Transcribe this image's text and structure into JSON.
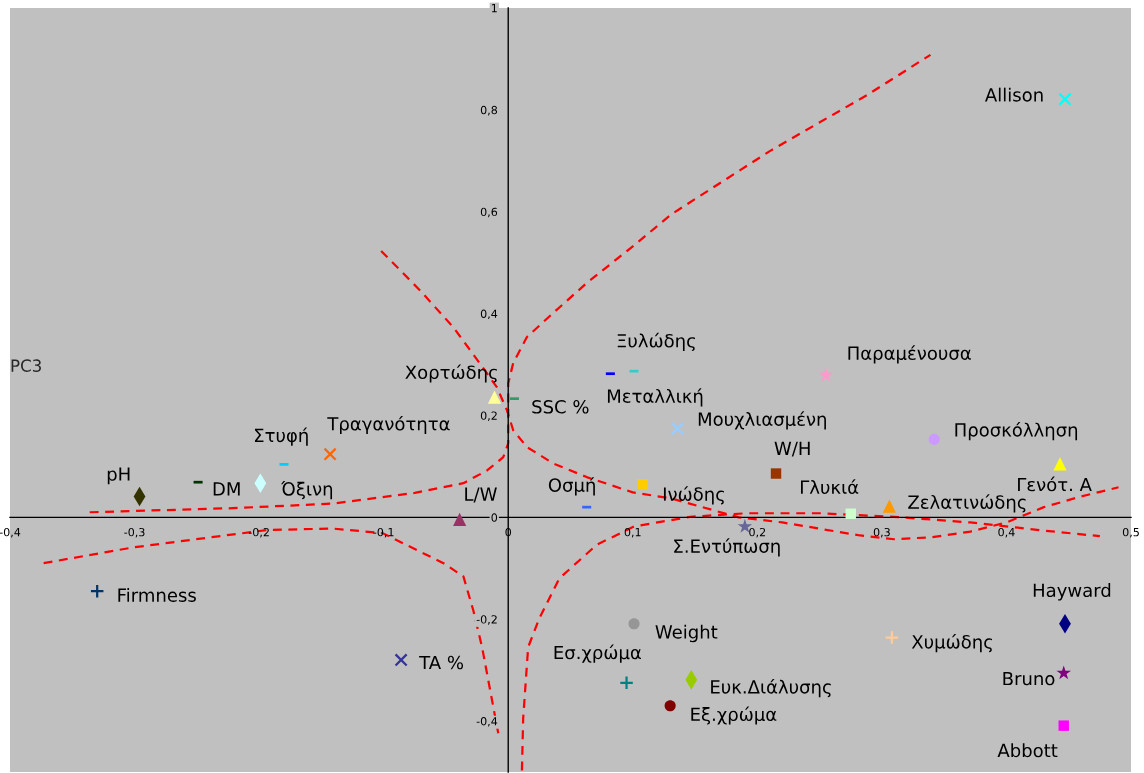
{
  "chart_data": {
    "type": "scatter",
    "ylabel": "PC3",
    "xlim": [
      -0.4,
      0.5
    ],
    "ylim": [
      -0.5,
      1
    ],
    "xticks": [
      {
        "value": -0.4,
        "label": "-0,4"
      },
      {
        "value": -0.3,
        "label": "-0,3"
      },
      {
        "value": -0.2,
        "label": "-0,2"
      },
      {
        "value": -0.1,
        "label": "-0,1"
      },
      0,
      {
        "value": 0.1,
        "label": "0,1"
      },
      {
        "value": 0.2,
        "label": "0,2"
      },
      {
        "value": 0.3,
        "label": "0,3"
      },
      {
        "value": 0.4,
        "label": "0,4"
      },
      {
        "value": 0.5,
        "label": "0,5"
      }
    ],
    "yticks": [
      {
        "value": -0.4,
        "label": "-0,4"
      },
      {
        "value": -0.2,
        "label": "-0,2"
      },
      0,
      {
        "value": 0.2,
        "label": "0,2"
      },
      {
        "value": 0.4,
        "label": "0,4"
      },
      {
        "value": 0.6,
        "label": "0,6"
      },
      {
        "value": 0.8,
        "label": "0,8"
      },
      1
    ],
    "series": [
      {
        "name": "pH",
        "color": "#333300",
        "marker": "diamond",
        "x": [
          -0.296
        ],
        "values": [
          0.041
        ]
      },
      {
        "name": "DM",
        "color": "#003300",
        "x": [
          -0.249
        ],
        "values": [
          0.069
        ]
      },
      {
        "name": "Όξινη",
        "color": "#ccffff",
        "marker": "diamond",
        "x": [
          -0.199
        ],
        "values": [
          0.067
        ]
      },
      {
        "name": "Στυφή",
        "color": "#00ccff",
        "x": [
          -0.18
        ],
        "values": [
          0.104
        ]
      },
      {
        "name": "Τραγανότητα",
        "color": "#ff6600",
        "marker": "cross",
        "x": [
          -0.143
        ],
        "values": [
          0.124
        ]
      },
      {
        "name": "Χορτώδης",
        "color": "#ffff99",
        "marker": "triangle",
        "x": [
          -0.011
        ],
        "values": [
          0.236
        ]
      },
      {
        "name": "SSC %",
        "color": "#339966",
        "x": [
          0.005
        ],
        "values": [
          0.233
        ]
      },
      {
        "name": "L/W",
        "color": "#993366",
        "marker": "triangle",
        "x": [
          -0.039
        ],
        "values": [
          -0.004
        ]
      },
      {
        "name": "Οσμή",
        "color": "#3366ff",
        "x": [
          0.063
        ],
        "values": [
          0.02
        ]
      },
      {
        "name": "Ξυλώδης",
        "color": "#33cccc",
        "x": [
          0.101
        ],
        "values": [
          0.287
        ]
      },
      {
        "name": "Μεταλλική",
        "color": "#0000ff",
        "x": [
          0.082
        ],
        "values": [
          0.282
        ]
      },
      {
        "name": "Μουχλιασμένη",
        "color": "#99ccff",
        "marker": "cross",
        "x": [
          0.136
        ],
        "values": [
          0.174
        ]
      },
      {
        "name": "Ινώδης",
        "color": "#ffcc00",
        "marker": "square",
        "x": [
          0.108
        ],
        "values": [
          0.065
        ]
      },
      {
        "name": "W/H",
        "color": "#993300",
        "marker": "square",
        "x": [
          0.215
        ],
        "values": [
          0.086
        ]
      },
      {
        "name": "Σ.Εντύπωση",
        "color": "#666699",
        "marker": "star",
        "x": [
          0.19
        ],
        "values": [
          -0.018
        ]
      },
      {
        "name": "Παραμένουσα",
        "color": "#ff99cc",
        "marker": "star",
        "x": [
          0.255
        ],
        "values": [
          0.279
        ]
      },
      {
        "name": "Προσκόλληση",
        "color": "#cc99ff",
        "marker": "circle",
        "x": [
          0.342
        ],
        "values": [
          0.153
        ]
      },
      {
        "name": "Γενότ. A",
        "color": "#ffff00",
        "marker": "triangle",
        "x": [
          0.443
        ],
        "values": [
          0.105
        ]
      },
      {
        "name": "Γλυκιά",
        "color": "#ccffcc",
        "marker": "square",
        "x": [
          0.275
        ],
        "values": [
          0.007
        ]
      },
      {
        "name": "Ζελατινώδης",
        "color": "#ff9900",
        "marker": "triangle",
        "x": [
          0.306
        ],
        "values": [
          0.022
        ]
      },
      {
        "name": "Allison",
        "color": "#00ffff",
        "marker": "cross",
        "x": [
          0.447
        ],
        "values": [
          0.821
        ]
      },
      {
        "name": "Firmness",
        "color": "#003366",
        "marker": "plus",
        "x": [
          -0.33
        ],
        "values": [
          -0.145
        ]
      },
      {
        "name": "TA %",
        "color": "#333399",
        "marker": "cross",
        "x": [
          -0.086
        ],
        "values": [
          -0.28
        ]
      },
      {
        "name": "Weight",
        "color": "#969696",
        "marker": "circle",
        "x": [
          0.101
        ],
        "values": [
          -0.209
        ]
      },
      {
        "name": "Εσ.χρώμα",
        "color": "#008080",
        "marker": "plus",
        "x": [
          0.095
        ],
        "values": [
          -0.325
        ]
      },
      {
        "name": "Ευκ.Διάλυσης",
        "color": "#99cc00",
        "marker": "diamond",
        "x": [
          0.147
        ],
        "values": [
          -0.319
        ]
      },
      {
        "name": "Εξ.χρώμα",
        "color": "#800000",
        "marker": "circle",
        "x": [
          0.13
        ],
        "values": [
          -0.37
        ]
      },
      {
        "name": "Χυμώδης",
        "color": "#ffcc99",
        "marker": "plus",
        "x": [
          0.308
        ],
        "values": [
          -0.236
        ]
      },
      {
        "name": "Hayward",
        "color": "#000080",
        "marker": "diamond",
        "x": [
          0.447
        ],
        "values": [
          -0.209
        ]
      },
      {
        "name": "Bruno",
        "color": "#800080",
        "marker": "star",
        "x": [
          0.446
        ],
        "values": [
          -0.306
        ]
      },
      {
        "name": "Abbott",
        "color": "#ff00ff",
        "marker": "square",
        "x": [
          0.446
        ],
        "values": [
          -0.409
        ]
      },
      {
        "type": "line",
        "color": "#ff0000",
        "line_style": "dashed",
        "marker": "none",
        "x": [
          -0.373,
          -0.301,
          -0.194,
          -0.141,
          -0.101,
          -0.052,
          -0.036,
          -0.028,
          -0.021,
          -0.008
        ],
        "values": [
          -0.09,
          -0.059,
          -0.025,
          -0.022,
          -0.031,
          -0.09,
          -0.116,
          -0.183,
          -0.255,
          -0.424
        ]
      },
      {
        "type": "line",
        "color": "#ff0000",
        "line_style": "dashed",
        "marker": "none",
        "x": [
          -0.336,
          -0.221,
          -0.141,
          -0.075,
          -0.036,
          -0.017,
          -0.004,
          0.0,
          0.0,
          0.0,
          0.004,
          0.015,
          0.036,
          0.063,
          0.103,
          0.131,
          0.21,
          0.288,
          0.339
        ],
        "values": [
          0.01,
          0.018,
          0.027,
          0.048,
          0.067,
          0.092,
          0.118,
          0.145,
          0.196,
          0.263,
          0.303,
          0.354,
          0.401,
          0.46,
          0.538,
          0.595,
          0.719,
          0.829,
          0.908
        ]
      },
      {
        "type": "line",
        "color": "#ff0000",
        "line_style": "dashed",
        "marker": "none",
        "x": [
          -0.102,
          -0.071,
          -0.044,
          -0.023,
          -0.009,
          -0.001,
          0.004,
          0.015,
          0.036,
          0.063,
          0.1,
          0.131,
          0.185,
          0.22,
          0.281,
          0.31,
          0.34,
          0.371,
          0.4,
          0.43,
          0.46,
          0.49
        ],
        "values": [
          0.523,
          0.446,
          0.373,
          0.303,
          0.255,
          0.21,
          0.171,
          0.138,
          0.106,
          0.079,
          0.049,
          0.037,
          0.0,
          -0.01,
          -0.035,
          -0.043,
          -0.039,
          -0.028,
          -0.01,
          0.02,
          0.041,
          0.059
        ]
      },
      {
        "type": "line",
        "color": "#ff0000",
        "line_style": "dashed",
        "marker": "none",
        "x": [
          0.011,
          0.012,
          0.016,
          0.025,
          0.041,
          0.071,
          0.101,
          0.146,
          0.191,
          0.251,
          0.31,
          0.371,
          0.43,
          0.475
        ],
        "values": [
          -0.497,
          -0.395,
          -0.255,
          -0.198,
          -0.12,
          -0.054,
          -0.018,
          0.001,
          0.008,
          0.008,
          0.001,
          -0.01,
          -0.026,
          -0.037
        ]
      }
    ]
  }
}
